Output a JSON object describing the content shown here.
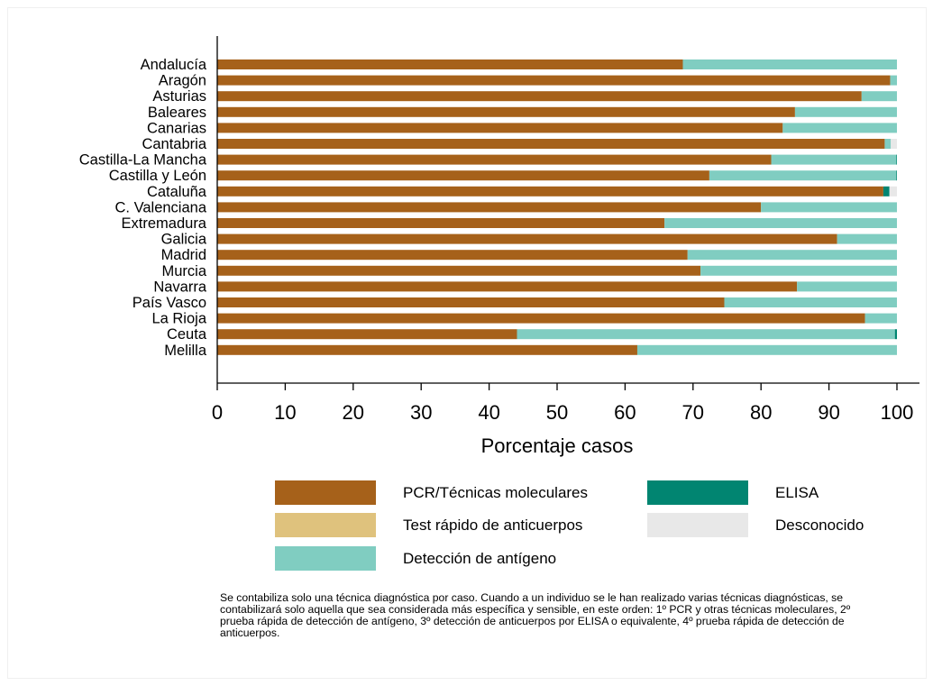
{
  "chart_data": {
    "type": "bar",
    "orientation": "horizontal",
    "stacked": true,
    "categories": [
      "Andalucía",
      "Aragón",
      "Asturias",
      "Baleares",
      "Canarias",
      "Cantabria",
      "Castilla-La Mancha",
      "Castilla y León",
      "Cataluña",
      "C. Valenciana",
      "Extremadura",
      "Galicia",
      "Madrid",
      "Murcia",
      "Navarra",
      "País Vasco",
      "La Rioja",
      "Ceuta",
      "Melilla"
    ],
    "series": [
      {
        "name": "PCR/Técnicas moleculares",
        "color": "#a6611a",
        "values": [
          68.5,
          99,
          94.8,
          85,
          83.2,
          98.2,
          81.5,
          72.4,
          98,
          80,
          65.8,
          91.2,
          69.2,
          71.1,
          85.3,
          74.6,
          95.3,
          44.1,
          61.8
        ]
      },
      {
        "name": "Test rápido de anticuerpos",
        "color": "#dfc27d",
        "values": [
          0,
          0,
          0,
          0,
          0,
          0,
          0,
          0,
          0,
          0,
          0,
          0,
          0,
          0,
          0,
          0,
          0,
          0,
          0
        ]
      },
      {
        "name": "Detección de antígeno",
        "color": "#80cdc1",
        "values": [
          31.5,
          1,
          5.2,
          15,
          16.8,
          0.9,
          18.4,
          27.5,
          0,
          20,
          34.2,
          8.8,
          30.8,
          28.9,
          14.7,
          25.4,
          4.7,
          55.6,
          38.2
        ]
      },
      {
        "name": "ELISA",
        "color": "#018571",
        "values": [
          0,
          0,
          0,
          0,
          0,
          0,
          0.1,
          0.1,
          0.9,
          0,
          0,
          0,
          0,
          0,
          0,
          0,
          0,
          0.3,
          0
        ]
      },
      {
        "name": "Desconocido",
        "color": "#e8e8e8",
        "values": [
          0,
          0,
          0,
          0,
          0,
          0.9,
          0,
          0,
          1.1,
          0,
          0,
          0,
          0,
          0,
          0,
          0,
          0,
          0,
          0
        ]
      }
    ],
    "xlabel": "Porcentaje casos",
    "xlim": [
      0,
      100
    ],
    "xticks": [
      "0",
      "10",
      "20",
      "30",
      "40",
      "50",
      "60",
      "70",
      "80",
      "90",
      "100"
    ],
    "legend_position": "bottom",
    "grid": false
  },
  "legend": [
    {
      "label": "PCR/Técnicas moleculares",
      "color": "#a6611a"
    },
    {
      "label": "ELISA",
      "color": "#018571"
    },
    {
      "label": "Test rápido de anticuerpos",
      "color": "#dfc27d"
    },
    {
      "label": "Desconocido",
      "color": "#e8e8e8"
    },
    {
      "label": "Detección de antígeno",
      "color": "#80cdc1"
    }
  ],
  "note": "Se contabiliza solo una técnica diagnóstica por caso. Cuando a un individuo se le han realizado varias técnicas diagnósticas, se contabilizará solo aquella que sea considerada más específica y sensible, en este orden: 1º PCR y otras técnicas moleculares, 2º prueba rápida de detección de antígeno, 3º detección de anticuerpos por ELISA o equivalente, 4º prueba rápida de detección de anticuerpos."
}
